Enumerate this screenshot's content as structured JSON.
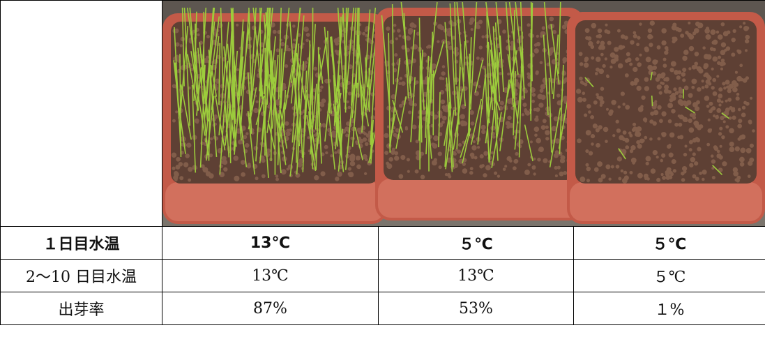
{
  "table": {
    "rows": [
      [
        "１日目水温",
        "13℃",
        "５℃",
        "５℃"
      ],
      [
        "2～10 日目水温",
        "13℃",
        "13℃",
        "５℃"
      ],
      [
        "出芽率",
        "87%",
        "53%",
        "１%"
      ]
    ]
  }
}
